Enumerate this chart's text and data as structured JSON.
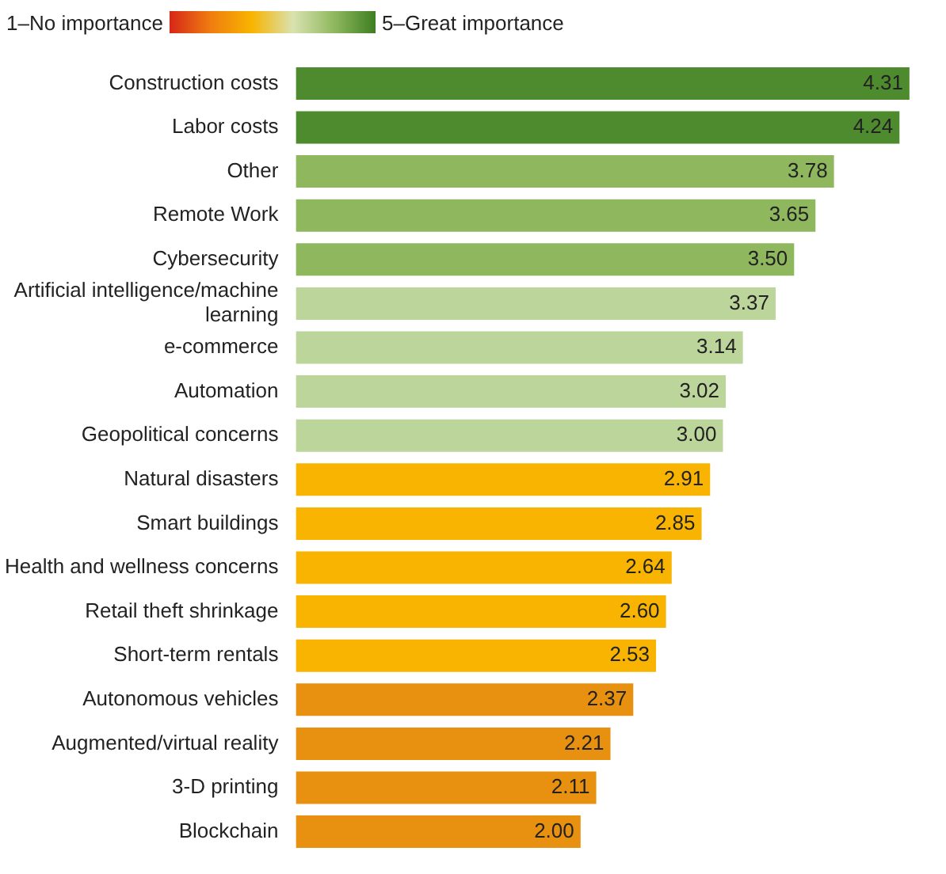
{
  "chart_data": {
    "type": "bar",
    "orientation": "horizontal",
    "value_labels": [
      "4.31",
      "4.24",
      "3.78",
      "3.65",
      "3.50",
      "3.37",
      "3.14",
      "3.02",
      "3.00",
      "2.91",
      "2.85",
      "2.64",
      "2.60",
      "2.53",
      "2.37",
      "2.21",
      "2.11",
      "2.00"
    ],
    "annotations": [
      "1–No importance",
      "5–Great importance"
    ],
    "categories": [
      "Construction costs",
      "Labor costs",
      "Other",
      "Remote Work",
      "Cybersecurity",
      "Artificial intelligence/machine learning",
      "e-commerce",
      "Automation",
      "Geopolitical concerns",
      "Natural disasters",
      "Smart buildings",
      "Health and wellness concerns",
      "Retail theft shrinkage",
      "Short-term rentals",
      "Autonomous vehicles",
      "Augmented/virtual reality",
      "3-D printing",
      "Blockchain"
    ],
    "values": [
      4.31,
      4.24,
      3.78,
      3.65,
      3.5,
      3.37,
      3.14,
      3.02,
      3.0,
      2.91,
      2.85,
      2.64,
      2.6,
      2.53,
      2.37,
      2.21,
      2.11,
      2.0
    ],
    "colors": [
      "#4e8b2e",
      "#4e8b2e",
      "#8fb85e",
      "#8fb85e",
      "#8fb85e",
      "#bcd59b",
      "#bcd59b",
      "#bcd59b",
      "#bcd59b",
      "#f8b400",
      "#f8b400",
      "#f8b400",
      "#f8b400",
      "#f8b400",
      "#e8900f",
      "#e8900f",
      "#e8900f",
      "#e8900f"
    ]
  }
}
